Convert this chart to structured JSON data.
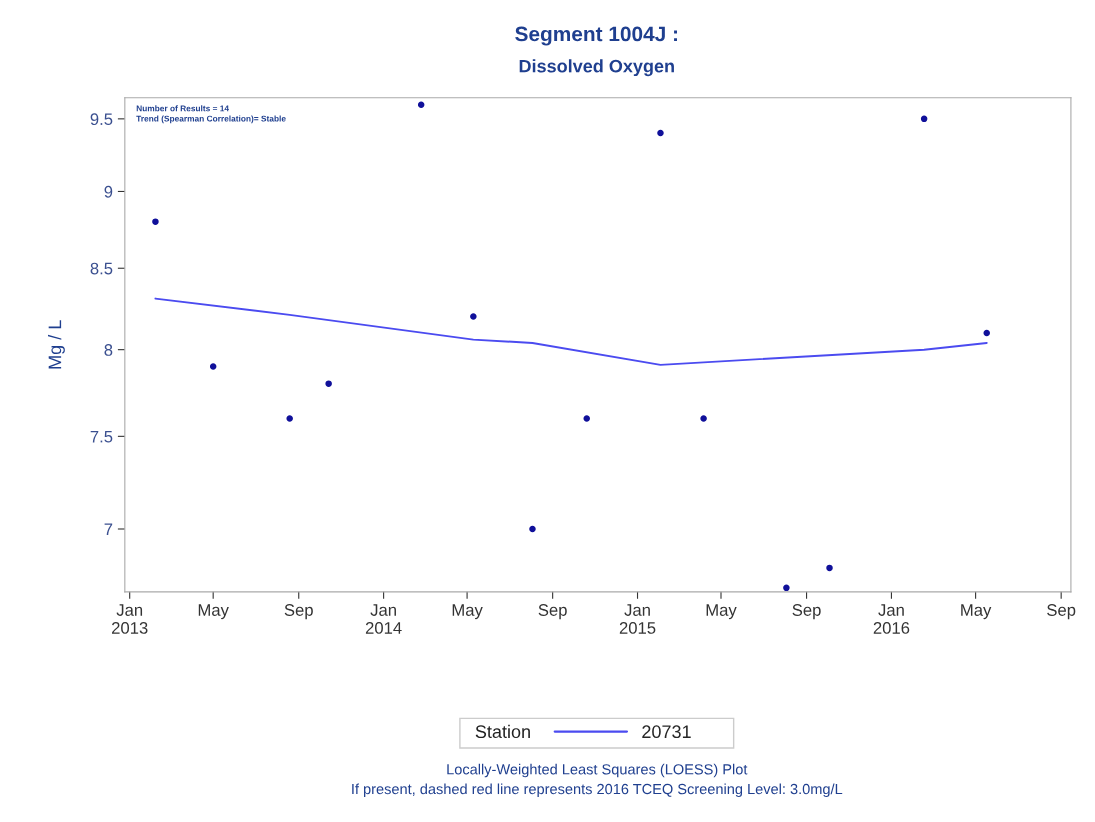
{
  "chart_data": {
    "type": "scatter",
    "title": "Segment 1004J :",
    "subtitle": "Dissolved Oxygen",
    "ylabel": "Mg / L",
    "legend_title": "Station",
    "annotations": [
      "Number of Results = 14",
      "Trend (Spearman Correlation)= Stable",
      "Locally-Weighted Least Squares (LOESS) Plot",
      "If present, dashed red line represents 2016 TCEQ Screening Level: 3.0mg/L"
    ],
    "series": [
      {
        "color": "#10109a",
        "marker": "circle",
        "x": [
          "2013-02-07",
          "2013-05-01",
          "2013-08-19",
          "2013-10-14",
          "2014-02-24",
          "2014-05-10",
          "2014-08-03",
          "2014-10-20",
          "2015-02-03",
          "2015-04-06",
          "2015-08-03",
          "2015-10-04",
          "2016-02-17",
          "2016-05-17"
        ],
        "values": [
          8.8,
          7.9,
          7.6,
          7.8,
          9.6,
          8.2,
          7.0,
          7.6,
          9.4,
          7.6,
          6.7,
          6.8,
          9.5,
          8.1
        ]
      },
      {
        "type": "line",
        "name": "20731",
        "color": "#4b4bf0",
        "line_style": "solid",
        "x": [
          "2013-02-07",
          "2013-08-19",
          "2014-05-10",
          "2014-08-03",
          "2015-02-03",
          "2016-02-17",
          "2016-05-17"
        ],
        "values": [
          8.31,
          8.21,
          8.06,
          8.04,
          7.91,
          8.0,
          8.04
        ]
      }
    ],
    "log": true,
    "xlim": [
      "2012-12-25",
      "2016-09-15"
    ],
    "xticks": [
      {
        "value": "2013-01-01",
        "label": "Jan\n2013"
      },
      {
        "value": "2013-05-01",
        "label": "May"
      },
      {
        "value": "2013-09-01",
        "label": "Sep"
      },
      {
        "value": "2014-01-01",
        "label": "Jan\n2014"
      },
      {
        "value": "2014-05-01",
        "label": "May"
      },
      {
        "value": "2014-09-01",
        "label": "Sep"
      },
      {
        "value": "2015-01-01",
        "label": "Jan\n2015"
      },
      {
        "value": "2015-05-01",
        "label": "May"
      },
      {
        "value": "2015-09-01",
        "label": "Sep"
      },
      {
        "value": "2016-01-01",
        "label": "Jan\n2016"
      },
      {
        "value": "2016-05-01",
        "label": "May"
      },
      {
        "value": "2016-09-01",
        "label": "Sep"
      }
    ],
    "ylim": [
      6.68,
      9.65
    ],
    "yticks": [
      7,
      7.5,
      8,
      8.5,
      9,
      9.5
    ],
    "grid": false,
    "legend": "bottom"
  }
}
